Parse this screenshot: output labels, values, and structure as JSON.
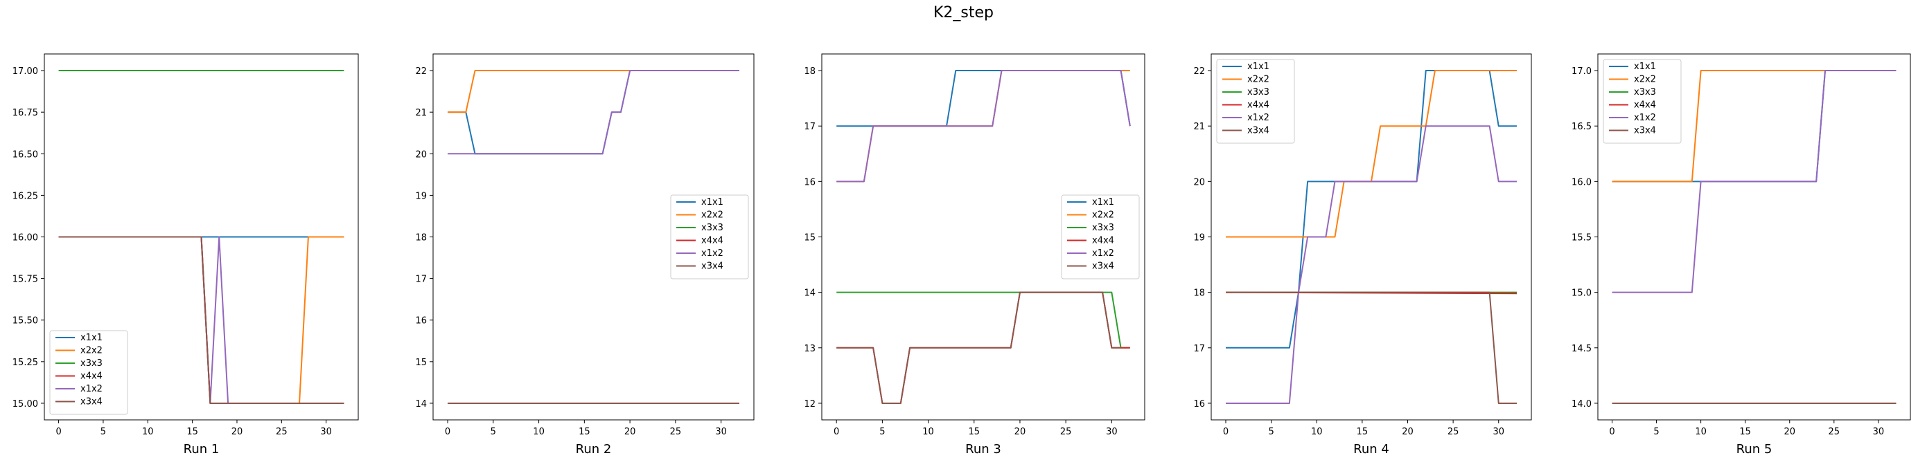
{
  "figure": {
    "title": "K2_step"
  },
  "chart_data": [
    {
      "type": "line",
      "xlabel": "Run 1",
      "xlim": [
        -1.6,
        33.6
      ],
      "ylim": [
        14.9,
        17.1
      ],
      "xticks": [
        0,
        5,
        10,
        15,
        20,
        25,
        30
      ],
      "yticks": [
        15.0,
        15.25,
        15.5,
        15.75,
        16.0,
        16.25,
        16.5,
        16.75,
        17.0
      ],
      "ytick_labels": [
        "15.00",
        "15.25",
        "15.50",
        "15.75",
        "16.00",
        "16.25",
        "16.50",
        "16.75",
        "17.00"
      ],
      "legend": "lower-left",
      "series": [
        {
          "name": "x1x1",
          "color": "#1f77b4",
          "points": [
            [
              0,
              16
            ],
            [
              32,
              16
            ]
          ]
        },
        {
          "name": "x2x2",
          "color": "#ff7f0e",
          "points": [
            [
              0,
              16
            ],
            [
              16,
              16
            ],
            [
              17,
              15
            ],
            [
              27,
              15
            ],
            [
              28,
              16
            ],
            [
              32,
              16
            ]
          ]
        },
        {
          "name": "x3x3",
          "color": "#2ca02c",
          "points": [
            [
              0,
              17
            ],
            [
              32,
              17
            ]
          ]
        },
        {
          "name": "x4x4",
          "color": "#d62728",
          "points": [
            [
              0,
              16
            ],
            [
              16,
              16
            ],
            [
              17,
              15
            ],
            [
              32,
              15
            ]
          ]
        },
        {
          "name": "x1x2",
          "color": "#9467bd",
          "points": [
            [
              0,
              16
            ],
            [
              16,
              16
            ],
            [
              17,
              15
            ],
            [
              18,
              16
            ],
            [
              19,
              15
            ],
            [
              32,
              15
            ]
          ]
        },
        {
          "name": "x3x4",
          "color": "#8c564b",
          "points": [
            [
              0,
              16
            ],
            [
              16,
              16
            ],
            [
              17,
              15
            ],
            [
              32,
              15
            ]
          ]
        }
      ]
    },
    {
      "type": "line",
      "xlabel": "Run 2",
      "xlim": [
        -1.6,
        33.6
      ],
      "ylim": [
        13.6,
        22.4
      ],
      "xticks": [
        0,
        5,
        10,
        15,
        20,
        25,
        30
      ],
      "yticks": [
        14,
        15,
        16,
        17,
        18,
        19,
        20,
        21,
        22
      ],
      "ytick_labels": [
        "14",
        "15",
        "16",
        "17",
        "18",
        "19",
        "20",
        "21",
        "22"
      ],
      "legend": "center-right",
      "series": [
        {
          "name": "x1x1",
          "color": "#1f77b4",
          "points": [
            [
              0,
              21
            ],
            [
              2,
              21
            ],
            [
              3,
              20
            ],
            [
              17,
              20
            ],
            [
              18,
              21
            ],
            [
              19,
              21
            ],
            [
              20,
              22
            ],
            [
              32,
              22
            ]
          ]
        },
        {
          "name": "x2x2",
          "color": "#ff7f0e",
          "points": [
            [
              0,
              21
            ],
            [
              2,
              21
            ],
            [
              3,
              22
            ],
            [
              32,
              22
            ]
          ]
        },
        {
          "name": "x3x3",
          "color": "#2ca02c",
          "points": [
            [
              0,
              14
            ],
            [
              32,
              14
            ]
          ]
        },
        {
          "name": "x4x4",
          "color": "#d62728",
          "points": [
            [
              0,
              14
            ],
            [
              32,
              14
            ]
          ]
        },
        {
          "name": "x1x2",
          "color": "#9467bd",
          "points": [
            [
              0,
              20
            ],
            [
              17,
              20
            ],
            [
              18,
              21
            ],
            [
              19,
              21
            ],
            [
              20,
              22
            ],
            [
              32,
              22
            ]
          ]
        },
        {
          "name": "x3x4",
          "color": "#8c564b",
          "points": [
            [
              0,
              14
            ],
            [
              32,
              14
            ]
          ]
        }
      ]
    },
    {
      "type": "line",
      "xlabel": "Run 3",
      "xlim": [
        -1.6,
        33.6
      ],
      "ylim": [
        11.7,
        18.3
      ],
      "xticks": [
        0,
        5,
        10,
        15,
        20,
        25,
        30
      ],
      "yticks": [
        12,
        13,
        14,
        15,
        16,
        17,
        18
      ],
      "ytick_labels": [
        "12",
        "13",
        "14",
        "15",
        "16",
        "17",
        "18"
      ],
      "legend": "center-right",
      "series": [
        {
          "name": "x1x1",
          "color": "#1f77b4",
          "points": [
            [
              0,
              17
            ],
            [
              12,
              17
            ],
            [
              13,
              18
            ],
            [
              31,
              18
            ],
            [
              32,
              17
            ]
          ]
        },
        {
          "name": "x2x2",
          "color": "#ff7f0e",
          "points": [
            [
              0,
              16
            ],
            [
              3,
              16
            ],
            [
              4,
              17
            ],
            [
              17,
              17
            ],
            [
              18,
              18
            ],
            [
              32,
              18
            ]
          ]
        },
        {
          "name": "x3x3",
          "color": "#2ca02c",
          "points": [
            [
              0,
              14
            ],
            [
              30,
              14
            ],
            [
              31,
              13
            ],
            [
              32,
              13
            ]
          ]
        },
        {
          "name": "x4x4",
          "color": "#d62728",
          "points": [
            [
              0,
              13
            ],
            [
              4,
              13
            ],
            [
              5,
              12
            ],
            [
              7,
              12
            ],
            [
              8,
              13
            ],
            [
              19,
              13
            ],
            [
              20,
              14
            ],
            [
              29,
              14
            ],
            [
              30,
              13
            ],
            [
              32,
              13
            ]
          ]
        },
        {
          "name": "x1x2",
          "color": "#9467bd",
          "points": [
            [
              0,
              16
            ],
            [
              3,
              16
            ],
            [
              4,
              17
            ],
            [
              17,
              17
            ],
            [
              18,
              18
            ],
            [
              31,
              18
            ],
            [
              32,
              17
            ]
          ]
        },
        {
          "name": "x3x4",
          "color": "#8c564b",
          "points": [
            [
              0,
              13
            ],
            [
              4,
              13
            ],
            [
              5,
              12
            ],
            [
              7,
              12
            ],
            [
              8,
              13
            ],
            [
              19,
              13
            ],
            [
              20,
              14
            ],
            [
              29,
              14
            ],
            [
              30,
              13
            ],
            [
              31,
              13
            ]
          ]
        }
      ]
    },
    {
      "type": "line",
      "xlabel": "Run 4",
      "xlim": [
        -1.6,
        33.6
      ],
      "ylim": [
        15.7,
        22.3
      ],
      "xticks": [
        0,
        5,
        10,
        15,
        20,
        25,
        30
      ],
      "yticks": [
        16,
        17,
        18,
        19,
        20,
        21,
        22
      ],
      "ytick_labels": [
        "16",
        "17",
        "18",
        "19",
        "20",
        "21",
        "22"
      ],
      "legend": "upper-left",
      "series": [
        {
          "name": "x1x1",
          "color": "#1f77b4",
          "points": [
            [
              0,
              17
            ],
            [
              7,
              17
            ],
            [
              8,
              18
            ],
            [
              9,
              20
            ],
            [
              21,
              20
            ],
            [
              22,
              22
            ],
            [
              29,
              22
            ],
            [
              30,
              21
            ],
            [
              32,
              21
            ]
          ]
        },
        {
          "name": "x2x2",
          "color": "#ff7f0e",
          "points": [
            [
              0,
              19
            ],
            [
              12,
              19
            ],
            [
              13,
              20
            ],
            [
              16,
              20
            ],
            [
              17,
              21
            ],
            [
              22,
              21
            ],
            [
              23,
              22
            ],
            [
              32,
              22
            ]
          ]
        },
        {
          "name": "x3x3",
          "color": "#2ca02c",
          "points": [
            [
              0,
              18
            ],
            [
              32,
              18
            ]
          ]
        },
        {
          "name": "x4x4",
          "color": "#d62728",
          "points": [
            [
              0,
              18
            ],
            [
              32,
              17.98
            ]
          ]
        },
        {
          "name": "x1x2",
          "color": "#9467bd",
          "points": [
            [
              0,
              16
            ],
            [
              7,
              16
            ],
            [
              8,
              18
            ],
            [
              9,
              19
            ],
            [
              11,
              19
            ],
            [
              12,
              20
            ],
            [
              21,
              20
            ],
            [
              22,
              21
            ],
            [
              29,
              21
            ],
            [
              30,
              20
            ],
            [
              32,
              20
            ]
          ]
        },
        {
          "name": "x3x4",
          "color": "#8c564b",
          "points": [
            [
              0,
              18
            ],
            [
              29,
              18
            ],
            [
              30,
              16
            ],
            [
              32,
              16
            ]
          ]
        }
      ]
    },
    {
      "type": "line",
      "xlabel": "Run 5",
      "xlim": [
        -1.6,
        33.6
      ],
      "ylim": [
        13.85,
        17.15
      ],
      "xticks": [
        0,
        5,
        10,
        15,
        20,
        25,
        30
      ],
      "yticks": [
        14.0,
        14.5,
        15.0,
        15.5,
        16.0,
        16.5,
        17.0
      ],
      "ytick_labels": [
        "14.0",
        "14.5",
        "15.0",
        "15.5",
        "16.0",
        "16.5",
        "17.0"
      ],
      "legend": "upper-left",
      "series": [
        {
          "name": "x1x1",
          "color": "#1f77b4",
          "points": [
            [
              0,
              16
            ],
            [
              23,
              16
            ],
            [
              24,
              17
            ],
            [
              32,
              17
            ]
          ]
        },
        {
          "name": "x2x2",
          "color": "#ff7f0e",
          "points": [
            [
              0,
              16
            ],
            [
              9,
              16
            ],
            [
              10,
              17
            ],
            [
              32,
              17
            ]
          ]
        },
        {
          "name": "x3x3",
          "color": "#2ca02c",
          "points": [
            [
              0,
              14
            ],
            [
              32,
              14
            ]
          ]
        },
        {
          "name": "x4x4",
          "color": "#d62728",
          "points": [
            [
              0,
              14
            ],
            [
              32,
              14
            ]
          ]
        },
        {
          "name": "x1x2",
          "color": "#9467bd",
          "points": [
            [
              0,
              15
            ],
            [
              9,
              15
            ],
            [
              10,
              16
            ],
            [
              23,
              16
            ],
            [
              24,
              17
            ],
            [
              32,
              17
            ]
          ]
        },
        {
          "name": "x3x4",
          "color": "#8c564b",
          "points": [
            [
              0,
              14
            ],
            [
              32,
              14
            ]
          ]
        }
      ]
    }
  ]
}
